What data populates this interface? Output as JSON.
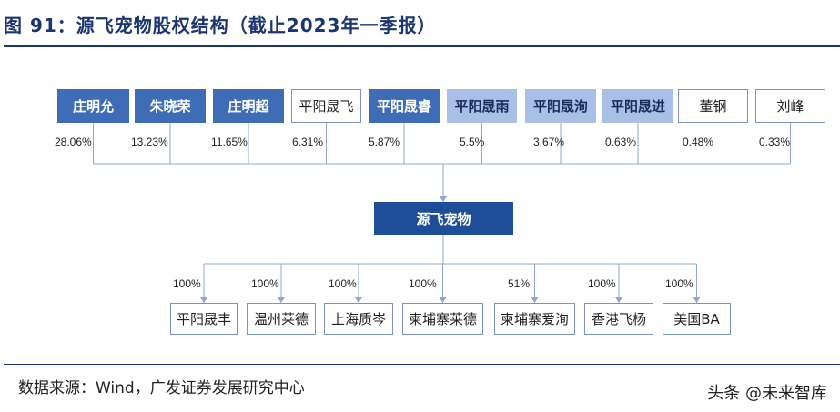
{
  "title": "图 91：源飞宠物股权结构（截止2023年一季报）",
  "source": "数据来源：Wind，广发证券发展研究中心",
  "watermark": "头条 @未来智库",
  "center": "源飞宠物",
  "shareholders": [
    {
      "name": "庄明允",
      "pct": "28.06%",
      "style": "dark"
    },
    {
      "name": "朱晓荣",
      "pct": "13.23%",
      "style": "dark"
    },
    {
      "name": "庄明超",
      "pct": "11.65%",
      "style": "dark"
    },
    {
      "name": "平阳晟飞",
      "pct": "6.31%",
      "style": "outline"
    },
    {
      "name": "平阳晟睿",
      "pct": "5.87%",
      "style": "dark"
    },
    {
      "name": "平阳晟雨",
      "pct": "5.5%",
      "style": "light"
    },
    {
      "name": "平阳晟洵",
      "pct": "3.67%",
      "style": "light"
    },
    {
      "name": "平阳晟进",
      "pct": "0.63%",
      "style": "light"
    },
    {
      "name": "董钢",
      "pct": "0.48%",
      "style": "outline"
    },
    {
      "name": "刘峰",
      "pct": "0.33%",
      "style": "outline"
    }
  ],
  "subsidiaries": [
    {
      "name": "平阳晟丰",
      "pct": "100%"
    },
    {
      "name": "温州莱德",
      "pct": "100%"
    },
    {
      "name": "上海质岑",
      "pct": "100%"
    },
    {
      "name": "柬埔寨莱德",
      "pct": "100%"
    },
    {
      "name": "柬埔寨爱洵",
      "pct": "51%"
    },
    {
      "name": "香港飞杨",
      "pct": "100%"
    },
    {
      "name": "美国BA",
      "pct": "100%"
    }
  ],
  "colors": {
    "dark": "#3e6cb6",
    "light": "#a9bfe5",
    "center": "#1f4e99",
    "line": "#8fa7d3",
    "title": "#1a3570"
  }
}
